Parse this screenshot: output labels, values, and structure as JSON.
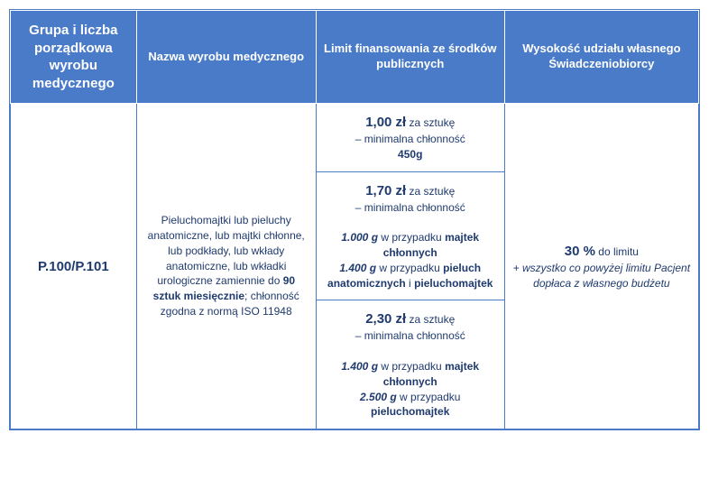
{
  "colors": {
    "header_bg": "#4a7bc8",
    "header_text": "#ffffff",
    "border": "#4a7bc8",
    "cell_text": "#1f3a6e",
    "background": "#ffffff"
  },
  "headers": {
    "col1": "Grupa i liczba porządkowa wyrobu medycznego",
    "col2": "Nazwa wyrobu medycznego",
    "col3": "Limit finansowania ze środków publicznych",
    "col4": "Wysokość udziału własnego Świadczeniobiorcy"
  },
  "row": {
    "group": "P.100/P.101",
    "name_pre": "Pieluchomajtki lub pieluchy anatomiczne, lub majtki chłonne, lub podkłady, lub wkłady anatomiczne, lub wkładki urologiczne zamiennie do ",
    "name_bold": "90 sztuk miesięcznie",
    "name_post": "; chłonność zgodna z normą ISO 11948",
    "limits": [
      {
        "price": "1,00 zł",
        "per": " za sztukę",
        "absorb_label": "– minimalna chłonność",
        "lines": [
          {
            "bold": "450g"
          }
        ]
      },
      {
        "price": "1,70 zł",
        "per": " za sztukę",
        "absorb_label": "– minimalna chłonność",
        "lines": [
          {
            "italic_bold": "1.000 g",
            "rest": " w przypadku ",
            "bold": "majtek chłonnych"
          },
          {
            "italic_bold": "1.400 g",
            "rest": " w przypadku ",
            "bold": "pieluch anatomicznych",
            "rest2": " i ",
            "bold2": "pieluchomajtek"
          }
        ]
      },
      {
        "price": "2,30 zł",
        "per": " za sztukę",
        "absorb_label": "– minimalna chłonność",
        "lines": [
          {
            "italic_bold": "1.400 g",
            "rest": " w przypadku ",
            "bold": "majtek chłonnych"
          },
          {
            "italic_bold": "2.500 g",
            "rest": " w przypadku ",
            "bold": "pieluchomajtek"
          }
        ]
      }
    ],
    "share_pct": "30 %",
    "share_limit": " do limitu",
    "share_note": "+ wszystko co powyżej limitu Pacjent dopłaca z własnego budżetu"
  }
}
